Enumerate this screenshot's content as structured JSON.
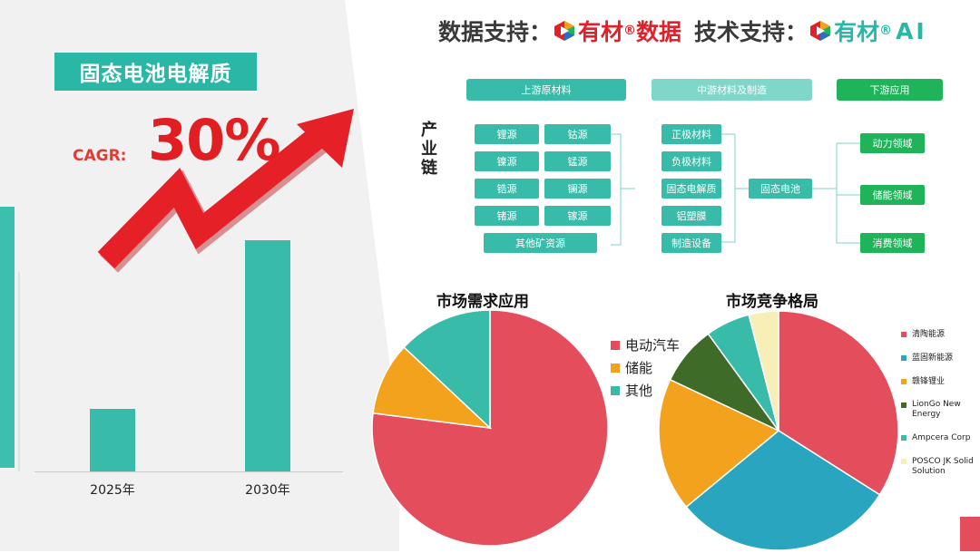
{
  "header": {
    "data_support_label": "数据支持：",
    "brand_data": "有材",
    "brand_data_reg": "®",
    "brand_data_suffix": "数据",
    "tech_support_label": "技术支持：",
    "brand_ai": "有材",
    "brand_ai_reg": "®",
    "brand_ai_suffix": "AI"
  },
  "title": "固态电池电解质",
  "cagr": {
    "label": "CAGR:",
    "value": "30%"
  },
  "colors": {
    "teal": "#38bca9",
    "red": "#e34d5c",
    "orange": "#f2a21c",
    "darkgreen": "#3e6b28",
    "lightyellow": "#f8efb8",
    "blue": "#2aa5c0",
    "green": "#1fb45a"
  },
  "industry_chain": {
    "label": "产业链",
    "stages": [
      "上游原材料",
      "中游材料及制造",
      "下游应用"
    ],
    "upstream": [
      "锂源",
      "钴源",
      "镍源",
      "锰源",
      "锆源",
      "镧源",
      "锗源",
      "镓源",
      "其他矿资源"
    ],
    "midstream": [
      "正极材料",
      "负极材料",
      "固态电解质",
      "铝塑膜",
      "制造设备"
    ],
    "core": "固态电池",
    "downstream": [
      "动力领域",
      "储能领域",
      "消费领域"
    ]
  },
  "chart_data": [
    {
      "type": "bar",
      "categories": [
        "2025年",
        "2030年"
      ],
      "values": [
        1,
        3.71
      ],
      "color": "#38bca9"
    },
    {
      "type": "pie",
      "title": "市场需求应用",
      "labels": [
        "电动汽车",
        "储能",
        "其他"
      ],
      "values": [
        77,
        10,
        13
      ],
      "colors": [
        "#e34d5c",
        "#f2a21c",
        "#38bca9"
      ],
      "legend_position": "right"
    },
    {
      "type": "pie",
      "title": "市场竞争格局",
      "labels": [
        "清陶能源",
        "蓝固新能源",
        "赣锋锂业",
        "LionGo New Energy",
        "Ampcera Corp",
        "POSCO JK Solid Solution"
      ],
      "values": [
        34,
        30,
        18,
        8,
        6,
        4
      ],
      "colors": [
        "#e34d5c",
        "#2aa5c0",
        "#f2a21c",
        "#3e6b28",
        "#38bca9",
        "#f8efb8"
      ],
      "legend_position": "right"
    }
  ]
}
